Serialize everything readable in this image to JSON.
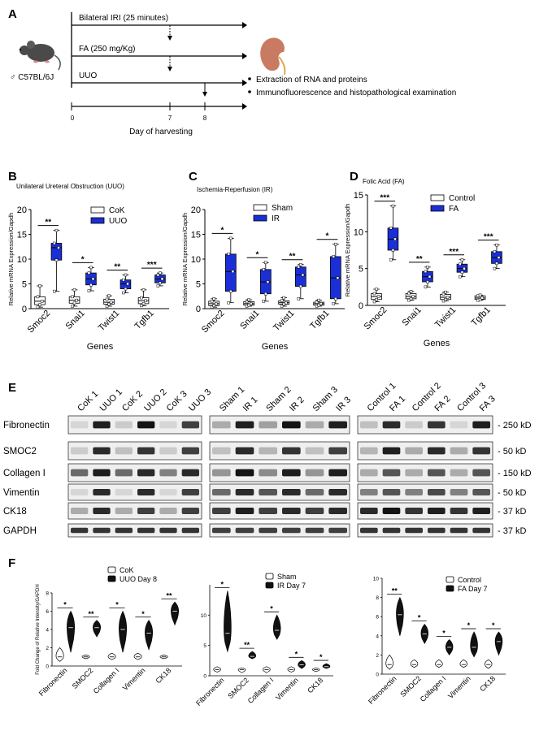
{
  "panel_a": {
    "letter": "A",
    "mouse_label": "♂ C57BL/6J",
    "timelines": [
      "Bilateral IRI (25 minutes)",
      "FA (250 mg/Kg)",
      "UUO"
    ],
    "axis_ticks": [
      "0",
      "7",
      "8"
    ],
    "axis_title": "Day of harvesting",
    "bullets": [
      "Extraction of RNA and proteins",
      "Immunofluorescence and histopathological examination"
    ],
    "colors": {
      "mouse": "#4a4a4a",
      "kidney": "#c97a63"
    }
  },
  "panel_b": {
    "letter": "B",
    "title": "Unilateral Ureteral Obstruction (UUO)",
    "ylabel": "Relative mRNA Expression/Gapdh",
    "xlabel": "Genes",
    "legend": [
      "CoK",
      "UUO"
    ],
    "significance": [
      "**",
      "*",
      "**",
      "***"
    ]
  },
  "panel_c": {
    "letter": "C",
    "title": "Ischemia-Reperfusion (IR)",
    "ylabel": "Relative mRNA Expression/Gapdh",
    "xlabel": "Genes",
    "legend": [
      "Sham",
      "IR"
    ],
    "significance": [
      "*",
      "*",
      "**",
      "*"
    ]
  },
  "panel_d": {
    "letter": "D",
    "title": "Folic Acid (FA)",
    "ylabel": "Relative mRNA Expression/Gapdh",
    "xlabel": "Genes",
    "legend": [
      "Control",
      "FA"
    ],
    "significance": [
      "***",
      "**",
      "***",
      "***"
    ]
  },
  "panel_e": {
    "letter": "E",
    "groups": [
      {
        "lanes": [
          "CoK 1",
          "UUO 1",
          "CoK 2",
          "UUO 2",
          "CoK 3",
          "UUO 3"
        ]
      },
      {
        "lanes": [
          "Sham 1",
          "IR 1",
          "Sham 2",
          "IR 2",
          "Sham 3",
          "IR 3"
        ]
      },
      {
        "lanes": [
          "Control 1",
          "FA 1",
          "Control 2",
          "FA 2",
          "Control 3",
          "FA 3"
        ]
      }
    ],
    "rows": [
      "Fibronectin",
      "SMOC2",
      "Collagen I",
      "Vimentin",
      "CK18",
      "GAPDH"
    ],
    "markers": [
      "- 250 kD",
      "- 50 kD",
      "- 150 kD",
      "- 50 kD",
      "- 37 kD",
      "- 37 kD"
    ]
  },
  "panel_f": {
    "letter": "F",
    "ylabel": "Fold Change of Relative Intensity/GAPDH",
    "categories": [
      "Fibronectin",
      "SMOC2",
      "Collagen I",
      "Vimentin",
      "CK18"
    ],
    "legends": [
      [
        "CoK",
        "UUO Day 8"
      ],
      [
        "Sham",
        "IR Day 7"
      ],
      [
        "Control",
        "FA Day 7"
      ]
    ],
    "significance": [
      [
        "*",
        "**",
        "*",
        "*",
        "**"
      ],
      [
        "*",
        "**",
        "*",
        "*",
        "*"
      ],
      [
        "**",
        "*",
        "*",
        "*",
        "*"
      ]
    ]
  },
  "chart_data": [
    {
      "type": "box",
      "panel": "B",
      "categories": [
        "Smoc2",
        "Snai1",
        "Twist1",
        "Tgfb1"
      ],
      "yticks": [
        0,
        5,
        10,
        15,
        20
      ],
      "ylim": [
        0,
        20
      ],
      "series": [
        {
          "name": "CoK",
          "values": [
            1.5,
            1.7,
            1.3,
            1.6
          ],
          "q1": [
            0.8,
            1.1,
            0.9,
            1.0
          ],
          "q3": [
            2.4,
            2.4,
            1.9,
            2.2
          ],
          "min": [
            0.3,
            0.5,
            0.5,
            0.6
          ],
          "max": [
            4.6,
            3.8,
            2.6,
            3.8
          ]
        },
        {
          "name": "UUO",
          "values": [
            12.3,
            6.0,
            5.0,
            6.0
          ],
          "q1": [
            9.8,
            4.8,
            4.0,
            5.2
          ],
          "q3": [
            13.2,
            7.2,
            5.8,
            6.8
          ],
          "min": [
            3.5,
            3.6,
            3.2,
            4.6
          ],
          "max": [
            15.8,
            8.3,
            6.8,
            7.2
          ]
        }
      ]
    },
    {
      "type": "box",
      "panel": "C",
      "categories": [
        "Smoc2",
        "Snai1",
        "Twist1",
        "Tgfb1"
      ],
      "yticks": [
        0,
        5,
        10,
        15,
        20
      ],
      "ylim": [
        0,
        20
      ],
      "series": [
        {
          "name": "Sham",
          "values": [
            1.0,
            1.0,
            1.2,
            1.0
          ],
          "q1": [
            0.6,
            0.7,
            0.9,
            0.7
          ],
          "q3": [
            1.5,
            1.4,
            1.6,
            1.3
          ],
          "min": [
            0.3,
            0.5,
            0.5,
            0.5
          ],
          "max": [
            2.0,
            1.8,
            2.2,
            1.7
          ]
        },
        {
          "name": "IR",
          "values": [
            7.5,
            5.4,
            6.8,
            6.2
          ],
          "q1": [
            3.5,
            3.0,
            4.5,
            2.0
          ],
          "q3": [
            11.0,
            7.9,
            8.4,
            10.5
          ],
          "min": [
            1.2,
            1.5,
            2.0,
            1.0
          ],
          "max": [
            14.2,
            9.3,
            8.9,
            13.0
          ]
        }
      ]
    },
    {
      "type": "box",
      "panel": "D",
      "categories": [
        "Smoc2",
        "Snai1",
        "Twist1",
        "Tgfb1"
      ],
      "yticks": [
        0,
        5,
        10,
        15
      ],
      "ylim": [
        0,
        15
      ],
      "series": [
        {
          "name": "Control",
          "values": [
            1.2,
            1.2,
            1.1,
            1.0
          ],
          "q1": [
            0.8,
            0.9,
            0.8,
            0.8
          ],
          "q3": [
            1.6,
            1.6,
            1.5,
            1.3
          ],
          "min": [
            0.5,
            0.7,
            0.6,
            0.7
          ],
          "max": [
            2.2,
            1.9,
            1.8,
            1.4
          ]
        },
        {
          "name": "FA",
          "values": [
            9.0,
            3.9,
            5.0,
            6.5
          ],
          "q1": [
            7.5,
            3.2,
            4.5,
            5.7
          ],
          "q3": [
            10.5,
            4.6,
            5.6,
            7.3
          ],
          "min": [
            6.2,
            2.5,
            3.9,
            5.0
          ],
          "max": [
            13.5,
            5.2,
            6.2,
            8.2
          ]
        }
      ]
    },
    {
      "type": "violin",
      "panel": "F1",
      "categories": [
        "Fibronectin",
        "SMOC2",
        "Collagen I",
        "Vimentin",
        "CK18"
      ],
      "yticks": [
        0,
        2,
        4,
        6,
        8
      ],
      "ylim": [
        0,
        8
      ],
      "series": [
        {
          "name": "CoK",
          "values": [
            1.0,
            1.0,
            1.0,
            1.0,
            1.0
          ],
          "min": [
            0.5,
            0.8,
            0.7,
            0.7,
            0.8
          ],
          "max": [
            2.0,
            1.2,
            1.4,
            1.4,
            1.2
          ]
        },
        {
          "name": "UUO Day 8",
          "values": [
            4.2,
            4.2,
            4.0,
            3.6,
            6.0
          ],
          "min": [
            1.5,
            3.2,
            1.5,
            1.8,
            4.5
          ],
          "max": [
            6.0,
            5.0,
            6.0,
            5.0,
            7.0
          ]
        }
      ]
    },
    {
      "type": "violin",
      "panel": "F2",
      "categories": [
        "Fibronectin",
        "SMOC2",
        "Collagen I",
        "Vimentin",
        "CK18"
      ],
      "yticks": [
        0,
        5,
        10
      ],
      "ylim": [
        0,
        15
      ],
      "series": [
        {
          "name": "Sham",
          "values": [
            1.0,
            1.0,
            1.0,
            1.0,
            1.0
          ],
          "min": [
            0.6,
            0.5,
            0.5,
            0.6,
            0.7
          ],
          "max": [
            1.5,
            1.3,
            1.5,
            1.5,
            1.3
          ]
        },
        {
          "name": "IR Day 7",
          "values": [
            7.0,
            3.2,
            7.5,
            1.8,
            1.5
          ],
          "min": [
            4.0,
            2.8,
            6.0,
            1.2,
            1.2
          ],
          "max": [
            14.0,
            4.0,
            10.0,
            2.5,
            2.0
          ]
        }
      ]
    },
    {
      "type": "violin",
      "panel": "F3",
      "categories": [
        "Fibronectin",
        "SMOC2",
        "Collagen I",
        "Vimentin",
        "CK18"
      ],
      "yticks": [
        0,
        2,
        4,
        6,
        8,
        10
      ],
      "ylim": [
        0,
        10
      ],
      "series": [
        {
          "name": "Control",
          "values": [
            1.0,
            1.0,
            1.0,
            1.0,
            1.0
          ],
          "min": [
            0.5,
            0.7,
            0.7,
            0.7,
            0.6
          ],
          "max": [
            2.0,
            1.5,
            1.5,
            1.5,
            1.5
          ]
        },
        {
          "name": "FA Day 7",
          "values": [
            6.2,
            4.2,
            2.8,
            2.8,
            3.4
          ],
          "min": [
            4.0,
            3.2,
            2.0,
            1.8,
            2.0
          ],
          "max": [
            8.0,
            5.2,
            3.6,
            4.4,
            4.4
          ]
        }
      ]
    }
  ]
}
